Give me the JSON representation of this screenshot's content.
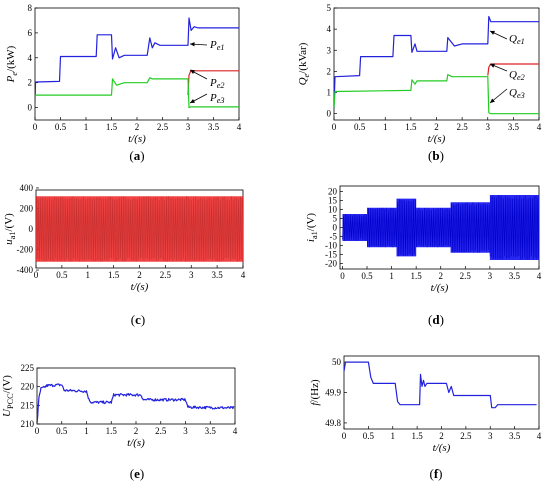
{
  "chart_data": [
    {
      "id": "a",
      "type": "line",
      "caption": "(a)",
      "ylabel": "P_e/(kW)",
      "xlabel": "t/(s)",
      "xlim": [
        0,
        4
      ],
      "ylim": [
        -1,
        8
      ],
      "xticks": [
        "0",
        "0.5",
        "1",
        "1.5",
        "2",
        "2.5",
        "3",
        "3.5",
        "4"
      ],
      "yticks": [
        "0",
        "2",
        "4",
        "6",
        "8"
      ],
      "series": [
        {
          "name": "P_e1",
          "color": "#2222dd",
          "x": [
            0,
            0.01,
            0.02,
            0.48,
            0.5,
            1.2,
            1.22,
            1.5,
            1.52,
            1.58,
            1.65,
            1.75,
            2.0,
            2.2,
            2.25,
            2.3,
            2.35,
            2.45,
            3.0,
            3.02,
            3.06,
            3.12,
            3.2,
            4.0
          ],
          "y": [
            0.2,
            2.0,
            2.05,
            2.1,
            4.1,
            4.1,
            5.85,
            5.85,
            3.9,
            4.8,
            4.0,
            4.2,
            4.2,
            4.2,
            5.6,
            4.8,
            5.2,
            5.0,
            5.0,
            7.2,
            6.2,
            6.5,
            6.4,
            6.4
          ]
        },
        {
          "name": "P_e2",
          "color": "#dd2222",
          "x": [
            3.0,
            3.02,
            3.06,
            3.12,
            4.0
          ],
          "y": [
            1.0,
            2.6,
            3.0,
            2.95,
            2.95
          ]
        },
        {
          "name": "P_e3",
          "color": "#22cc22",
          "x": [
            0,
            0.01,
            0.02,
            1.5,
            1.52,
            1.6,
            1.75,
            2.0,
            2.2,
            2.25,
            2.3,
            3.0,
            3.02,
            3.05,
            4.0
          ],
          "y": [
            0.2,
            1.0,
            1.0,
            1.0,
            2.3,
            1.8,
            2.0,
            2.0,
            2.0,
            2.4,
            2.3,
            2.3,
            0.0,
            0.05,
            0.05
          ]
        }
      ],
      "annotations": [
        "P_e1",
        "P_e2",
        "P_e3"
      ]
    },
    {
      "id": "b",
      "type": "line",
      "caption": "(b)",
      "ylabel": "Q_e/(kVar)",
      "xlabel": "t/(s)",
      "xlim": [
        0,
        4
      ],
      "ylim": [
        -0.3,
        5
      ],
      "xticks": [
        "0",
        "0.5",
        "1",
        "1.5",
        "2",
        "2.5",
        "3",
        "3.5",
        "4"
      ],
      "yticks": [
        "0",
        "1",
        "2",
        "3",
        "4",
        "5"
      ],
      "series": [
        {
          "name": "Q_e1",
          "color": "#2222dd",
          "x": [
            0,
            0.02,
            0.5,
            0.52,
            1.15,
            1.17,
            1.5,
            1.52,
            1.58,
            1.62,
            2.2,
            2.22,
            2.35,
            2.5,
            3.0,
            3.02,
            3.06,
            4.0
          ],
          "y": [
            0.3,
            1.75,
            1.8,
            2.7,
            2.7,
            3.7,
            3.7,
            2.9,
            3.3,
            2.95,
            2.95,
            3.6,
            3.2,
            3.3,
            3.3,
            4.6,
            4.35,
            4.35
          ]
        },
        {
          "name": "Q_e2",
          "color": "#dd2222",
          "x": [
            3.0,
            3.02,
            3.06,
            4.0
          ],
          "y": [
            1.8,
            2.2,
            2.35,
            2.35
          ]
        },
        {
          "name": "Q_e3",
          "color": "#22cc22",
          "x": [
            0,
            0.02,
            1.5,
            1.52,
            1.58,
            1.62,
            2.2,
            2.22,
            2.3,
            3.0,
            3.02,
            3.05,
            4.0
          ],
          "y": [
            0.3,
            1.05,
            1.1,
            1.6,
            1.4,
            1.55,
            1.55,
            1.85,
            1.75,
            1.75,
            0.05,
            0.0,
            0.0
          ]
        }
      ],
      "annotations": [
        "Q_e1",
        "Q_e2",
        "Q_e3"
      ]
    },
    {
      "id": "c",
      "type": "line",
      "caption": "(c)",
      "ylabel": "u_a1/(V)",
      "xlabel": "t/(s)",
      "xlim": [
        0,
        4
      ],
      "ylim": [
        -380,
        380
      ],
      "xticks": [
        "0",
        "0.5",
        "1",
        "1.5",
        "2",
        "2.5",
        "3",
        "3.5",
        "4"
      ],
      "yticks": [
        "-400",
        "-200",
        "0",
        "200",
        "400"
      ],
      "series": [
        {
          "name": "u_a1",
          "color": "#ee2222",
          "envelope": {
            "x": [
              0,
              4
            ],
            "upper": [
              320,
              320
            ],
            "lower": [
              -320,
              -320
            ]
          }
        }
      ]
    },
    {
      "id": "d",
      "type": "line",
      "caption": "(d)",
      "ylabel": "i_a1/(V)",
      "xlabel": "t/(s)",
      "xlim": [
        -0.05,
        4
      ],
      "ylim": [
        -23,
        23
      ],
      "xticks": [
        "0",
        "0.5",
        "1",
        "1.5",
        "2",
        "2.5",
        "3",
        "3.5",
        "4"
      ],
      "yticks": [
        "-20",
        "-15",
        "-10",
        "-5",
        "0",
        "5",
        "10",
        "15",
        "20"
      ],
      "series": [
        {
          "name": "i_a1",
          "color": "#1111ee",
          "envelope": {
            "x": [
              0,
              0.5,
              0.5,
              1.1,
              1.1,
              1.5,
              1.5,
              2.2,
              2.2,
              3.0,
              3.0,
              4.0
            ],
            "upper": [
              7.5,
              7.5,
              11,
              11,
              16,
              16,
              11,
              11,
              14,
              14,
              18,
              18
            ],
            "lower": [
              -7.5,
              -7.5,
              -11,
              -11,
              -16,
              -16,
              -11,
              -11,
              -14,
              -14,
              -18,
              -18
            ]
          }
        }
      ]
    },
    {
      "id": "e",
      "type": "line",
      "caption": "(e)",
      "ylabel": "U_PCC/(V)",
      "xlabel": "t/(s)",
      "xlim": [
        0,
        4
      ],
      "ylim": [
        210,
        225
      ],
      "xticks": [
        "0",
        "0.5",
        "1",
        "1.5",
        "2",
        "2.5",
        "3",
        "3.5",
        "4"
      ],
      "yticks": [
        "210",
        "215",
        "220",
        "225"
      ],
      "series": [
        {
          "name": "U_PCC",
          "color": "#2222dd",
          "x": [
            0,
            0.04,
            0.08,
            0.15,
            0.2,
            0.5,
            0.55,
            1.0,
            1.05,
            1.1,
            1.5,
            1.55,
            2.1,
            2.15,
            3.0,
            3.05,
            4.0
          ],
          "y": [
            210,
            217,
            219.5,
            219.8,
            220.3,
            220.5,
            219,
            218.8,
            216.5,
            215.8,
            215.8,
            217.8,
            217.8,
            216.5,
            216.5,
            214.5,
            214.3
          ],
          "noise": 0.35
        }
      ]
    },
    {
      "id": "f",
      "type": "line",
      "caption": "(f)",
      "ylabel": "f/(Hz)",
      "xlabel": "t/(s)",
      "xlim": [
        0,
        4
      ],
      "ylim": [
        49.78,
        50.02
      ],
      "xticks": [
        "0",
        "0.5",
        "1",
        "1.5",
        "2",
        "2.5",
        "3",
        "3.5",
        "4"
      ],
      "yticks": [
        "49.8",
        "49.9",
        "50"
      ],
      "series": [
        {
          "name": "f",
          "color": "#2222dd",
          "x": [
            0,
            0.03,
            0.5,
            0.55,
            0.6,
            1.05,
            1.1,
            1.15,
            1.55,
            1.57,
            1.6,
            1.63,
            1.66,
            1.7,
            2.1,
            2.15,
            2.2,
            2.25,
            2.3,
            3.0,
            3.03,
            3.1,
            3.15,
            3.95
          ],
          "y": [
            49.97,
            50.0,
            50.0,
            49.95,
            49.93,
            49.93,
            49.87,
            49.86,
            49.86,
            49.96,
            49.92,
            49.94,
            49.92,
            49.93,
            49.93,
            49.9,
            49.92,
            49.89,
            49.89,
            49.89,
            49.85,
            49.85,
            49.86,
            49.86
          ]
        }
      ]
    }
  ]
}
